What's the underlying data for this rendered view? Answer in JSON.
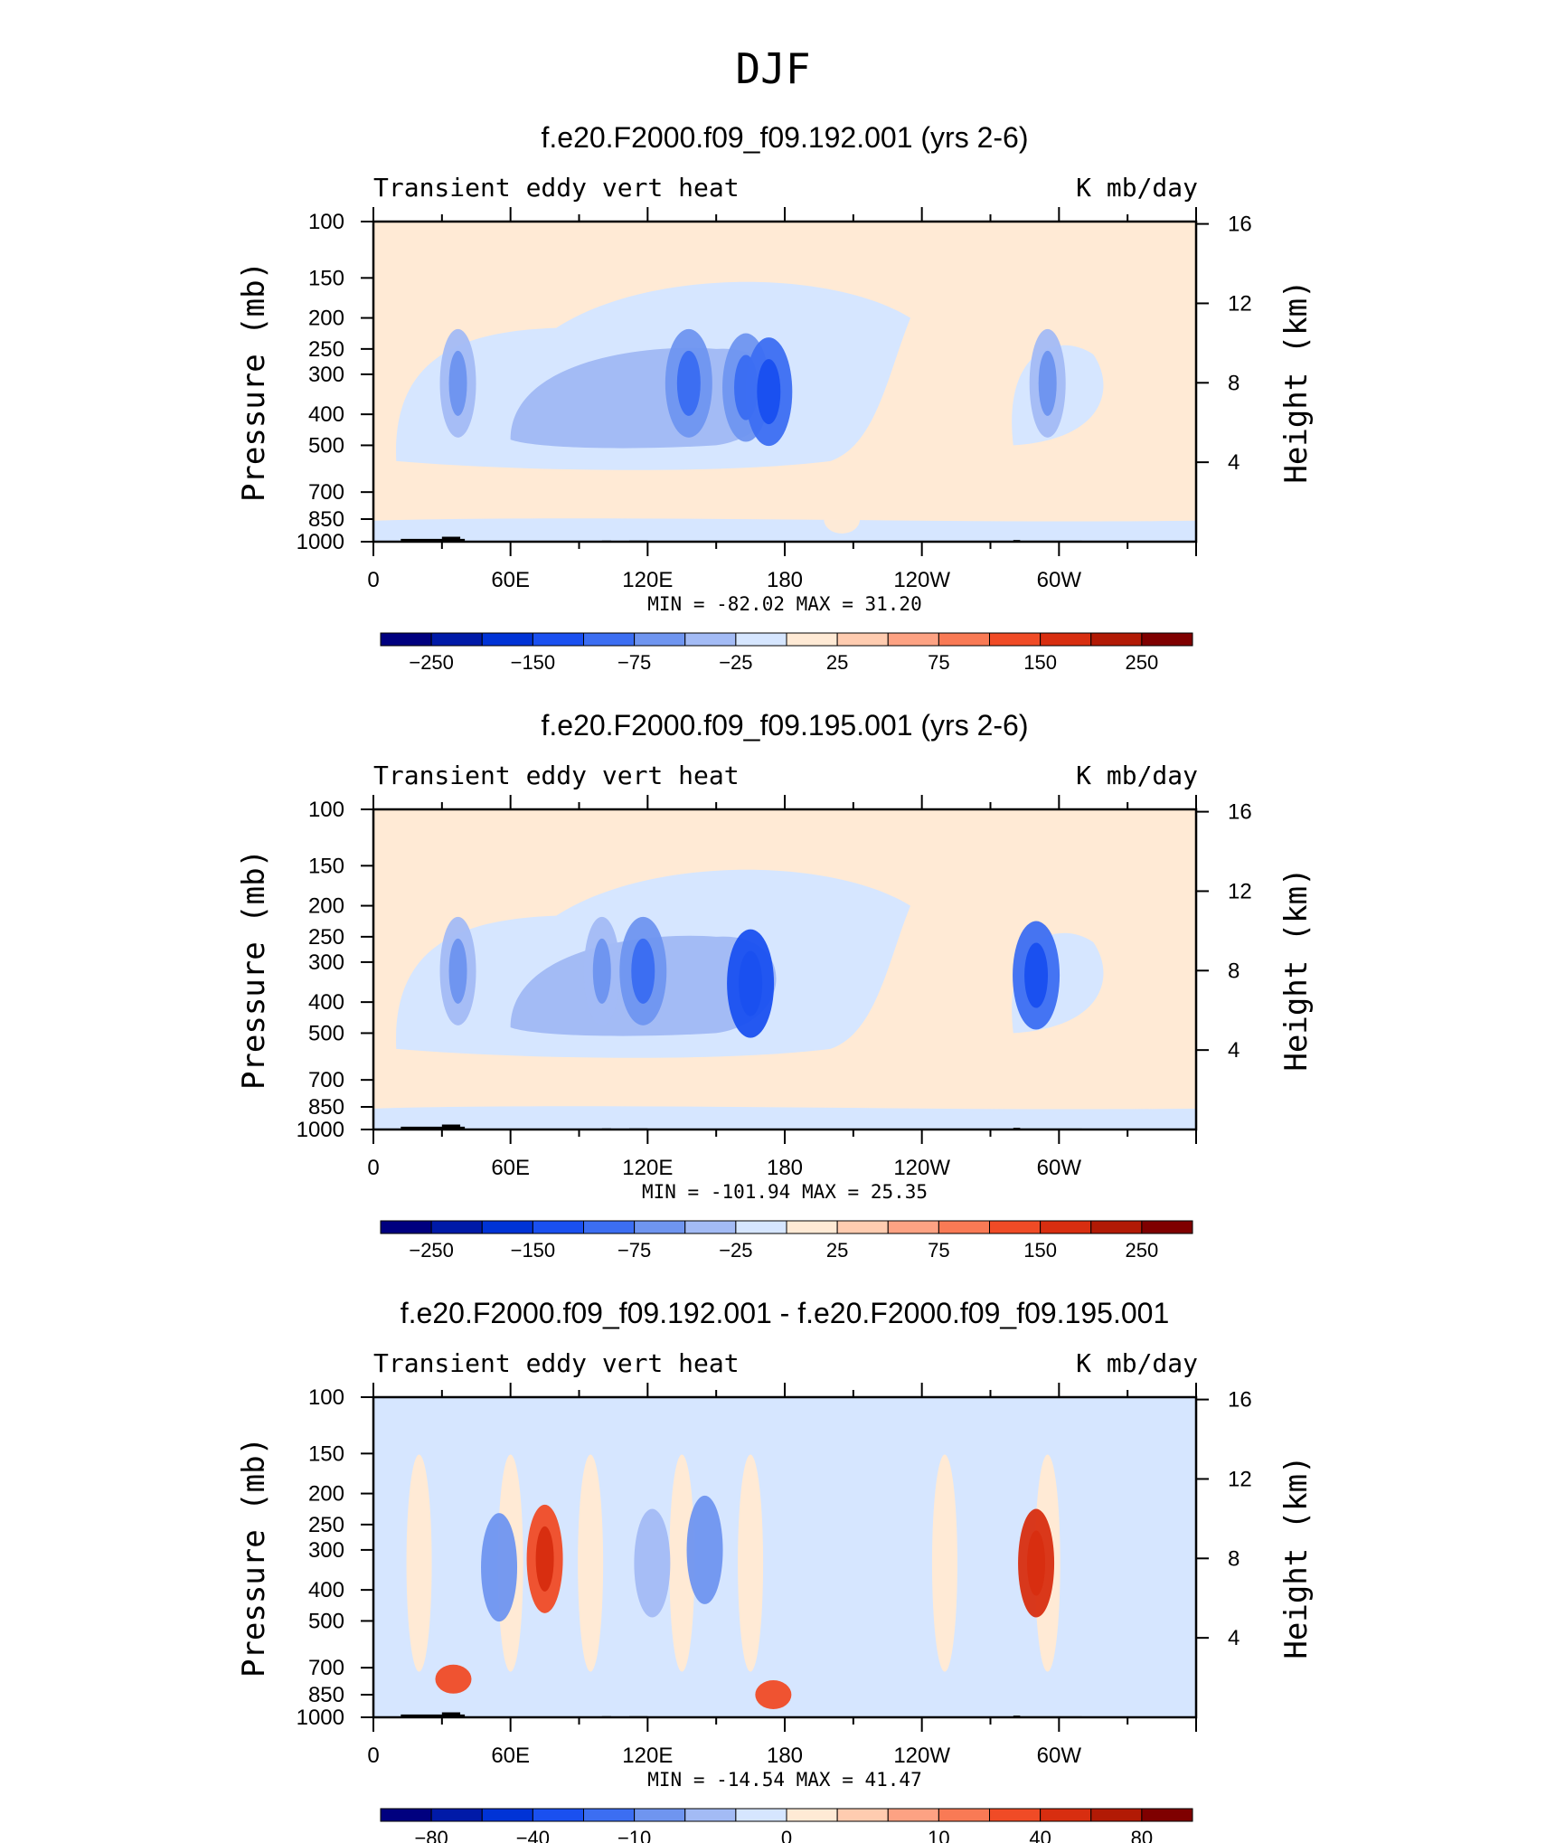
{
  "page_title": "DJF",
  "chart_data": [
    {
      "type": "heatmap",
      "title": "f.e20.F2000.f09_f09.192.001 (yrs 2-6)",
      "subtitle_left": "Transient eddy vert heat",
      "subtitle_right": "K mb/day",
      "xlabel": "",
      "ylabel": "Pressure (mb)",
      "ylabel_right": "Height (km)",
      "x_ticks": [
        "0",
        "60E",
        "120E",
        "180",
        "120W",
        "60W"
      ],
      "y_ticks": [
        "100",
        "150",
        "200",
        "250",
        "300",
        "400",
        "500",
        "700",
        "850",
        "1000"
      ],
      "y_right_ticks": [
        "16",
        "12",
        "8",
        "4"
      ],
      "min_label": "MIN =",
      "min_value": "-82.02",
      "max_label": "MAX =",
      "max_value": "31.20",
      "colorbar_labels": [
        "-250",
        "-150",
        "-75",
        "-25",
        "25",
        "75",
        "150",
        "250"
      ],
      "colorbar_levels": [
        -300,
        -250,
        -200,
        -150,
        -100,
        -75,
        -50,
        -25,
        0,
        25,
        50,
        75,
        100,
        150,
        200,
        250,
        300
      ],
      "features": [
        {
          "lon": 37,
          "p": 320,
          "value": -40
        },
        {
          "lon": 138,
          "p": 320,
          "value": -60
        },
        {
          "lon": 163,
          "p": 330,
          "value": -60
        },
        {
          "lon": 173,
          "p": 340,
          "value": -82
        },
        {
          "lon": 295,
          "p": 320,
          "value": -40
        },
        {
          "lon": 205,
          "p": 850,
          "value": 15
        }
      ]
    },
    {
      "type": "heatmap",
      "title": "f.e20.F2000.f09_f09.195.001 (yrs 2-6)",
      "subtitle_left": "Transient eddy vert heat",
      "subtitle_right": "K mb/day",
      "xlabel": "",
      "ylabel": "Pressure (mb)",
      "ylabel_right": "Height (km)",
      "x_ticks": [
        "0",
        "60E",
        "120E",
        "180",
        "120W",
        "60W"
      ],
      "y_ticks": [
        "100",
        "150",
        "200",
        "250",
        "300",
        "400",
        "500",
        "700",
        "850",
        "1000"
      ],
      "y_right_ticks": [
        "16",
        "12",
        "8",
        "4"
      ],
      "min_label": "MIN =",
      "min_value": "-101.94",
      "max_label": "MAX =",
      "max_value": "25.35",
      "colorbar_labels": [
        "-250",
        "-150",
        "-75",
        "-25",
        "25",
        "75",
        "150",
        "250"
      ],
      "colorbar_levels": [
        -300,
        -250,
        -200,
        -150,
        -100,
        -75,
        -50,
        -25,
        0,
        25,
        50,
        75,
        100,
        150,
        200,
        250,
        300
      ],
      "features": [
        {
          "lon": 37,
          "p": 320,
          "value": -40
        },
        {
          "lon": 100,
          "p": 320,
          "value": -50
        },
        {
          "lon": 118,
          "p": 320,
          "value": -70
        },
        {
          "lon": 165,
          "p": 350,
          "value": -101
        },
        {
          "lon": 290,
          "p": 330,
          "value": -80
        }
      ]
    },
    {
      "type": "heatmap",
      "title": "f.e20.F2000.f09_f09.192.001 - f.e20.F2000.f09_f09.195.001",
      "subtitle_left": "Transient eddy vert heat",
      "subtitle_right": "K mb/day",
      "xlabel": "",
      "ylabel": "Pressure (mb)",
      "ylabel_right": "Height (km)",
      "x_ticks": [
        "0",
        "60E",
        "120E",
        "180",
        "120W",
        "60W"
      ],
      "y_ticks": [
        "100",
        "150",
        "200",
        "250",
        "300",
        "400",
        "500",
        "700",
        "850",
        "1000"
      ],
      "y_right_ticks": [
        "16",
        "12",
        "8",
        "4"
      ],
      "min_label": "MIN =",
      "min_value": "-14.54",
      "max_label": "MAX =",
      "max_value": "41.47",
      "colorbar_labels": [
        "-80",
        "-40",
        "-10",
        "0",
        "10",
        "40",
        "80"
      ],
      "colorbar_levels": [
        -100,
        -80,
        -60,
        -40,
        -20,
        -10,
        -5,
        0,
        5,
        10,
        20,
        40,
        60,
        80,
        100
      ],
      "features": [
        {
          "lon": 55,
          "p": 340,
          "value": -14
        },
        {
          "lon": 75,
          "p": 320,
          "value": 30
        },
        {
          "lon": 122,
          "p": 330,
          "value": -10
        },
        {
          "lon": 145,
          "p": 300,
          "value": -12
        },
        {
          "lon": 290,
          "p": 330,
          "value": 41
        },
        {
          "lon": 35,
          "p": 760,
          "value": 25
        },
        {
          "lon": 175,
          "p": 850,
          "value": 20
        }
      ]
    }
  ],
  "colors": {
    "negative": [
      "#00007f",
      "#001aa8",
      "#0033d6",
      "#1a50f0",
      "#3c6ef2",
      "#6f95f0",
      "#a3bbf5",
      "#d6e6ff"
    ],
    "positive": [
      "#ffead5",
      "#ffccb0",
      "#fda283",
      "#f97a55",
      "#f04b26",
      "#d82e10",
      "#b21a05",
      "#7f0000"
    ]
  }
}
